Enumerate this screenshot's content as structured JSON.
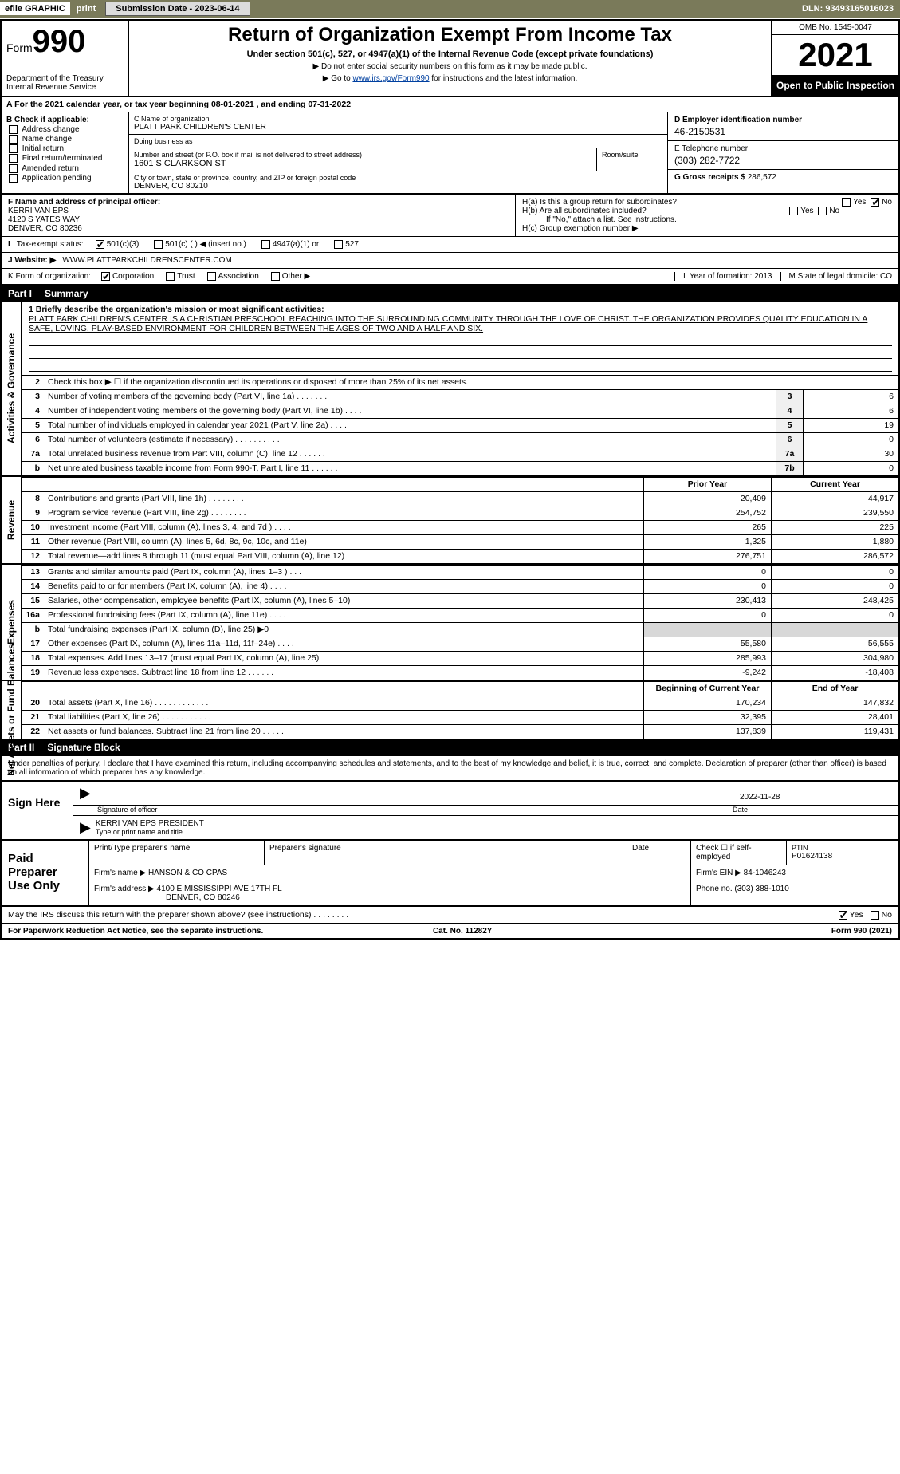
{
  "topbar": {
    "efile": "efile GRAPHIC",
    "print": "print",
    "submission_btn": "Submission Date - 2023-06-14",
    "dln": "DLN: 93493165016023"
  },
  "header": {
    "form_word": "Form",
    "form_num": "990",
    "dept": "Department of the Treasury\nInternal Revenue Service",
    "title": "Return of Organization Exempt From Income Tax",
    "sub": "Under section 501(c), 527, or 4947(a)(1) of the Internal Revenue Code (except private foundations)",
    "sub2a": "▶ Do not enter social security numbers on this form as it may be made public.",
    "sub2b": "▶ Go to ",
    "sub2b_link": "www.irs.gov/Form990",
    "sub2b_after": " for instructions and the latest information.",
    "omb": "OMB No. 1545-0047",
    "year": "2021",
    "open": "Open to Public Inspection"
  },
  "rowA": "A For the 2021 calendar year, or tax year beginning 08-01-2021    , and ending 07-31-2022",
  "B": {
    "lbl": "B Check if applicable:",
    "items": [
      "Address change",
      "Name change",
      "Initial return",
      "Final return/terminated",
      "Amended return",
      "Application pending"
    ]
  },
  "C": {
    "name_lbl": "C Name of organization",
    "name": "PLATT PARK CHILDREN'S CENTER",
    "dba_lbl": "Doing business as",
    "dba": "",
    "street_lbl": "Number and street (or P.O. box if mail is not delivered to street address)",
    "room_lbl": "Room/suite",
    "street": "1601 S CLARKSON ST",
    "city_lbl": "City or town, state or province, country, and ZIP or foreign postal code",
    "city": "DENVER, CO  80210"
  },
  "D": {
    "lbl": "D Employer identification number",
    "val": "46-2150531"
  },
  "E": {
    "lbl": "E Telephone number",
    "val": "(303) 282-7722"
  },
  "G": {
    "lbl": "G Gross receipts $",
    "val": "286,572"
  },
  "F": {
    "lbl": "F Name and address of principal officer:",
    "name": "KERRI VAN EPS",
    "addr1": "4120 S YATES WAY",
    "addr2": "DENVER, CO  80236"
  },
  "H": {
    "a": "H(a)  Is this a group return for subordinates?",
    "b": "H(b)  Are all subordinates included?",
    "b2": "If \"No,\" attach a list. See instructions.",
    "c": "H(c)  Group exemption number ▶"
  },
  "I": {
    "lbl": "Tax-exempt status:",
    "opts": [
      "501(c)(3)",
      "501(c) (  ) ◀ (insert no.)",
      "4947(a)(1) or",
      "527"
    ]
  },
  "J": {
    "lbl": "J Website: ▶",
    "val": "WWW.PLATTPARKCHILDRENSCENTER.COM"
  },
  "K": {
    "lbl": "K Form of organization:",
    "opts": [
      "Corporation",
      "Trust",
      "Association",
      "Other ▶"
    ]
  },
  "L": {
    "yol": "L Year of formation: 2013",
    "state": "M State of legal domicile: CO"
  },
  "partI": {
    "num": "Part I",
    "title": "Summary",
    "mission_lbl": "1  Briefly describe the organization's mission or most significant activities:",
    "mission": "PLATT PARK CHILDREN'S CENTER IS A CHRISTIAN PRESCHOOL REACHING INTO THE SURROUNDING COMMUNITY THROUGH THE LOVE OF CHRIST. THE ORGANIZATION PROVIDES QUALITY EDUCATION IN A SAFE, LOVING, PLAY-BASED ENVIRONMENT FOR CHILDREN BETWEEN THE AGES OF TWO AND A HALF AND SIX.",
    "line2": "Check this box ▶ ☐  if the organization discontinued its operations or disposed of more than 25% of its net assets.",
    "gov_label": "Activities & Governance",
    "rev_label": "Revenue",
    "exp_label": "Expenses",
    "net_label": "Net Assets or Fund Balances",
    "rows_gov": [
      {
        "n": "3",
        "t": "Number of voting members of the governing body (Part VI, line 1a)  .    .    .    .    .    .    .",
        "bx": "3",
        "v": "6"
      },
      {
        "n": "4",
        "t": "Number of independent voting members of the governing body (Part VI, line 1b)  .    .    .    .",
        "bx": "4",
        "v": "6"
      },
      {
        "n": "5",
        "t": "Total number of individuals employed in calendar year 2021 (Part V, line 2a)  .    .    .    .",
        "bx": "5",
        "v": "19"
      },
      {
        "n": "6",
        "t": "Total number of volunteers (estimate if necessary)   .    .    .    .    .    .    .    .    .    .",
        "bx": "6",
        "v": "0"
      },
      {
        "n": "7a",
        "t": "Total unrelated business revenue from Part VIII, column (C), line 12   .    .    .    .    .    .",
        "bx": "7a",
        "v": "30"
      },
      {
        "n": "b",
        "t": "Net unrelated business taxable income from Form 990-T, Part I, line 11   .    .    .    .    .    .",
        "bx": "7b",
        "v": "0"
      }
    ],
    "col_prior": "Prior Year",
    "col_curr": "Current Year",
    "rows_rev": [
      {
        "n": "8",
        "t": "Contributions and grants (Part VIII, line 1h)   .    .    .    .    .    .    .    .",
        "p": "20,409",
        "c": "44,917"
      },
      {
        "n": "9",
        "t": "Program service revenue (Part VIII, line 2g)  .    .    .    .    .    .    .    .",
        "p": "254,752",
        "c": "239,550"
      },
      {
        "n": "10",
        "t": "Investment income (Part VIII, column (A), lines 3, 4, and 7d )  .    .    .    .",
        "p": "265",
        "c": "225"
      },
      {
        "n": "11",
        "t": "Other revenue (Part VIII, column (A), lines 5, 6d, 8c, 9c, 10c, and 11e)",
        "p": "1,325",
        "c": "1,880"
      },
      {
        "n": "12",
        "t": "Total revenue—add lines 8 through 11 (must equal Part VIII, column (A), line 12)",
        "p": "276,751",
        "c": "286,572"
      }
    ],
    "rows_exp": [
      {
        "n": "13",
        "t": "Grants and similar amounts paid (Part IX, column (A), lines 1–3 )  .    .    .",
        "p": "0",
        "c": "0"
      },
      {
        "n": "14",
        "t": "Benefits paid to or for members (Part IX, column (A), line 4)  .    .    .    .",
        "p": "0",
        "c": "0"
      },
      {
        "n": "15",
        "t": "Salaries, other compensation, employee benefits (Part IX, column (A), lines 5–10)",
        "p": "230,413",
        "c": "248,425"
      },
      {
        "n": "16a",
        "t": "Professional fundraising fees (Part IX, column (A), line 11e)  .    .    .    .",
        "p": "0",
        "c": "0"
      },
      {
        "n": "b",
        "t": "Total fundraising expenses (Part IX, column (D), line 25) ▶0",
        "p": "",
        "c": "",
        "shade": true
      },
      {
        "n": "17",
        "t": "Other expenses (Part IX, column (A), lines 11a–11d, 11f–24e)  .    .    .    .",
        "p": "55,580",
        "c": "56,555"
      },
      {
        "n": "18",
        "t": "Total expenses. Add lines 13–17 (must equal Part IX, column (A), line 25)",
        "p": "285,993",
        "c": "304,980"
      },
      {
        "n": "19",
        "t": "Revenue less expenses. Subtract line 18 from line 12  .    .    .    .    .    .",
        "p": "-9,242",
        "c": "-18,408"
      }
    ],
    "col_boy": "Beginning of Current Year",
    "col_eoy": "End of Year",
    "rows_net": [
      {
        "n": "20",
        "t": "Total assets (Part X, line 16)  .    .    .    .    .    .    .    .    .    .    .    .",
        "p": "170,234",
        "c": "147,832"
      },
      {
        "n": "21",
        "t": "Total liabilities (Part X, line 26)  .    .    .    .    .    .    .    .    .    .    .",
        "p": "32,395",
        "c": "28,401"
      },
      {
        "n": "22",
        "t": "Net assets or fund balances. Subtract line 21 from line 20   .    .    .    .    .",
        "p": "137,839",
        "c": "119,431"
      }
    ]
  },
  "partII": {
    "num": "Part II",
    "title": "Signature Block"
  },
  "penalty": "Under penalties of perjury, I declare that I have examined this return, including accompanying schedules and statements, and to the best of my knowledge and belief, it is true, correct, and complete. Declaration of preparer (other than officer) is based on all information of which preparer has any knowledge.",
  "sign": {
    "lbl": "Sign Here",
    "sig_of_officer": "Signature of officer",
    "date_lbl": "Date",
    "date": "2022-11-28",
    "name": "KERRI VAN EPS  PRESIDENT",
    "name_lbl": "Type or print name and title"
  },
  "prep": {
    "lbl": "Paid Preparer Use Only",
    "h1": "Print/Type preparer's name",
    "h2": "Preparer's signature",
    "h3": "Date",
    "h4": "Check ☐ if self-employed",
    "h5_lbl": "PTIN",
    "h5": "P01624138",
    "firm_lbl": "Firm's name    ▶",
    "firm": "HANSON & CO CPAS",
    "ein_lbl": "Firm's EIN ▶",
    "ein": "84-1046243",
    "addr_lbl": "Firm's address ▶",
    "addr1": "4100 E MISSISSIPPI AVE 17TH FL",
    "addr2": "DENVER, CO  80246",
    "phone_lbl": "Phone no.",
    "phone": "(303) 388-1010"
  },
  "discuss": "May the IRS discuss this return with the preparer shown above? (see instructions)   .    .    .    .    .    .    .    .",
  "footer": {
    "left": "For Paperwork Reduction Act Notice, see the separate instructions.",
    "mid": "Cat. No. 11282Y",
    "right": "Form 990 (2021)"
  }
}
